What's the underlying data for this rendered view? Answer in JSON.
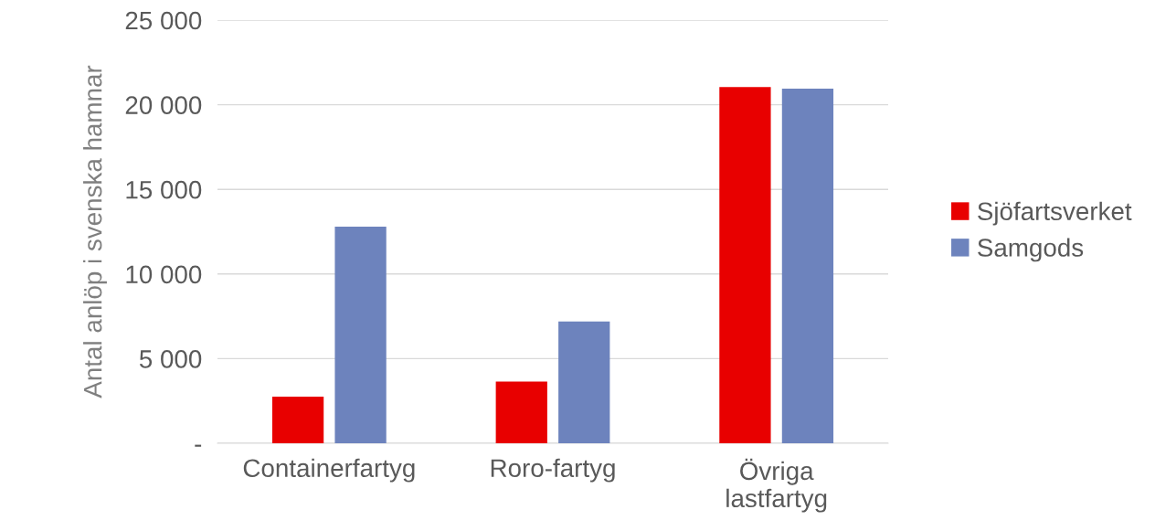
{
  "chart_data": {
    "type": "bar",
    "ylabel": "Antal anlöp i svenska hamnar",
    "categories": [
      "Containerfartyg",
      "Roro-fartyg",
      "Övriga\nlastfartyg"
    ],
    "series": [
      {
        "name": "Sjöfartsverket",
        "color": "#e80000",
        "values": [
          2750,
          3650,
          21050
        ]
      },
      {
        "name": "Samgods",
        "color": "#6d83bd",
        "values": [
          12800,
          7200,
          20950
        ]
      }
    ],
    "ylim": [
      0,
      25000
    ],
    "yticks": [
      {
        "value": 0,
        "label": "-"
      },
      {
        "value": 5000,
        "label": "5 000"
      },
      {
        "value": 10000,
        "label": "10 000"
      },
      {
        "value": 15000,
        "label": "15 000"
      },
      {
        "value": 20000,
        "label": "20 000"
      },
      {
        "value": 25000,
        "label": "25 000"
      }
    ],
    "grid": "y",
    "legend": "right"
  }
}
